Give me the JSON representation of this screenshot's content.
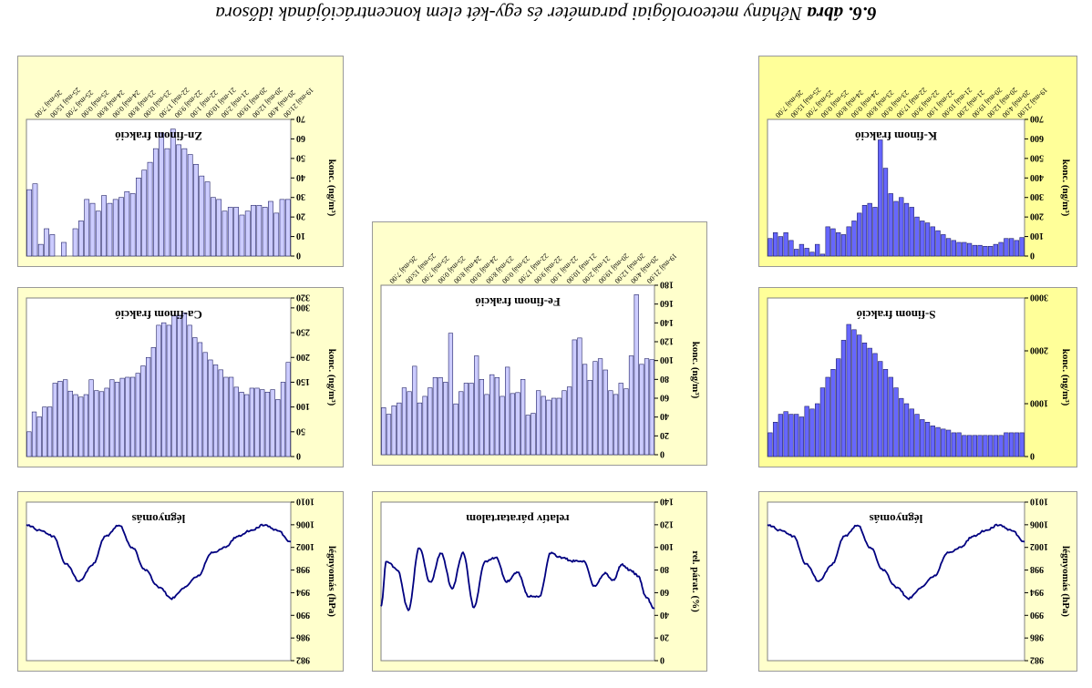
{
  "figure": {
    "number": "6.6. ábra",
    "caption": "Néhány meteorológiai paraméter és egy-két elem koncentrációjának idősora"
  },
  "colors": {
    "lavender_bg": "#ffffcc",
    "yellow_bg": "#ffff99",
    "light_bars": "#ccccff",
    "blue_bars": "#6666ff",
    "line": "#000080"
  },
  "date_labels": [
    "19-máj 21:00",
    "20-máj 4:00",
    "20-máj 12:00",
    "20-máj 19:00",
    "21-máj 2:00",
    "21-máj 10:00",
    "22-máj 1:00",
    "22-máj 9:00",
    "22-máj 17:00",
    "23-máj 0:00",
    "23-máj 8:00",
    "24-máj 0:00",
    "24-máj 8:00",
    "25-máj 0:00",
    "25-máj 7:00",
    "25-máj 15:00",
    "26-máj 7:00"
  ],
  "chart_data": [
    {
      "id": "zn",
      "type": "bar",
      "title": "Zn-finom frakció",
      "ylabel": "konc. (ng/m³)",
      "y_axis": "inverted",
      "ylim": [
        0,
        70
      ],
      "yticks": [
        0,
        10,
        20,
        30,
        40,
        50,
        60,
        70
      ],
      "values": [
        29,
        29,
        22,
        28,
        25,
        26,
        26,
        23,
        21,
        25,
        25,
        23,
        29,
        30,
        38,
        41,
        47,
        52,
        55,
        57,
        65,
        55,
        63,
        55,
        48,
        44,
        40,
        32,
        33,
        30,
        29,
        27,
        31,
        23,
        27,
        29,
        18,
        14,
        0,
        7,
        0,
        11,
        14,
        6,
        37,
        34
      ]
    },
    {
      "id": "k",
      "type": "bar",
      "title": "K-finom frakció",
      "ylabel": "konc. (ng/m³)",
      "y_axis": "inverted",
      "ylim": [
        0,
        700
      ],
      "yticks": [
        0,
        100,
        200,
        300,
        400,
        500,
        600,
        700
      ],
      "values": [
        95,
        80,
        90,
        90,
        70,
        60,
        50,
        50,
        55,
        55,
        65,
        70,
        70,
        80,
        90,
        110,
        130,
        150,
        170,
        180,
        200,
        250,
        270,
        300,
        280,
        320,
        450,
        595,
        250,
        270,
        260,
        220,
        180,
        150,
        110,
        120,
        140,
        150,
        10,
        60,
        20,
        40,
        60,
        35,
        80,
        120,
        100,
        120,
        90
      ]
    },
    {
      "id": "fe",
      "type": "bar",
      "title": "Fe-finom frakció",
      "ylabel": "konc. (ng/m³)",
      "y_axis": "inverted",
      "ylim": [
        0,
        180
      ],
      "yticks": [
        0,
        20,
        40,
        60,
        80,
        100,
        120,
        140,
        160,
        180
      ],
      "values": [
        101,
        102,
        96,
        170,
        105,
        70,
        76,
        64,
        68,
        90,
        102,
        99,
        79,
        96,
        124,
        122,
        72,
        68,
        60,
        60,
        58,
        62,
        68,
        44,
        42,
        80,
        66,
        65,
        93,
        62,
        82,
        85,
        64,
        80,
        105,
        76,
        76,
        67,
        54,
        129,
        77,
        82,
        82,
        71,
        62,
        55,
        94,
        67,
        71,
        55,
        52,
        43,
        50
      ]
    },
    {
      "id": "s",
      "type": "bar",
      "title": "S-finom frakció",
      "ylabel": "konc. (ng/m³)",
      "y_axis": "inverted",
      "ylim": [
        0,
        3000
      ],
      "yticks": [
        0,
        1000,
        2000,
        3000
      ],
      "values": [
        450,
        450,
        450,
        450,
        400,
        400,
        400,
        400,
        400,
        400,
        400,
        400,
        450,
        450,
        500,
        520,
        550,
        580,
        650,
        700,
        800,
        900,
        1000,
        1100,
        1300,
        1500,
        1650,
        1800,
        1950,
        2050,
        2150,
        2300,
        2400,
        2500,
        2200,
        1850,
        1650,
        1500,
        1300,
        1000,
        900,
        950,
        750,
        800,
        800,
        850,
        800,
        650,
        450
      ]
    },
    {
      "id": "ca",
      "type": "bar",
      "title": "Ca-finom frakció",
      "ylabel": "konc. (ng/m³)",
      "y_axis": "inverted",
      "ylim": [
        0,
        320
      ],
      "yticks": [
        0,
        50,
        100,
        150,
        200,
        250,
        300,
        320
      ],
      "values": [
        190,
        150,
        115,
        135,
        130,
        135,
        138,
        138,
        125,
        130,
        140,
        160,
        160,
        175,
        185,
        195,
        210,
        230,
        240,
        265,
        290,
        285,
        285,
        265,
        270,
        265,
        220,
        200,
        183,
        168,
        160,
        160,
        158,
        150,
        155,
        138,
        131,
        133,
        155,
        125,
        120,
        125,
        132,
        155,
        152,
        148,
        100,
        100,
        80,
        90,
        50
      ]
    },
    {
      "id": "rh",
      "type": "line",
      "title": "relatív páratartalom",
      "ylabel": "rel. párat. (%)",
      "y_axis": "inverted",
      "ylim": [
        0,
        140
      ],
      "yticks": [
        0,
        20,
        40,
        60,
        80,
        100,
        120,
        140
      ],
      "x_index": [
        0,
        3,
        6,
        9,
        12,
        15,
        18,
        22,
        26,
        30,
        34,
        38,
        42,
        46,
        50,
        54,
        58,
        62,
        66,
        70,
        74,
        78,
        82,
        86,
        90,
        94,
        98,
        100
      ],
      "values": [
        46,
        56,
        75,
        80,
        85,
        71,
        77,
        66,
        88,
        88,
        91,
        95,
        57,
        57,
        78,
        70,
        91,
        87,
        47,
        95,
        64,
        95,
        69,
        100,
        45,
        80,
        88,
        48
      ]
    },
    {
      "id": "p1",
      "type": "line",
      "title": "légnyomás",
      "ylabel": "légnyomás (hPa)",
      "y_axis": "inverted",
      "ylim": [
        982,
        1010
      ],
      "yticks": [
        982,
        986,
        990,
        994,
        998,
        1002,
        1006,
        1010
      ],
      "x_index": [
        0,
        5,
        10,
        15,
        20,
        25,
        30,
        35,
        40,
        45,
        50,
        55,
        60,
        65,
        70,
        75,
        80,
        85,
        90,
        95,
        100
      ],
      "values": [
        1003,
        1005,
        1006,
        1005,
        1004,
        1002,
        1001,
        997,
        995,
        993,
        995,
        998,
        1002,
        1006,
        1004,
        999,
        996,
        999,
        1004,
        1005,
        1006
      ]
    },
    {
      "id": "p2",
      "type": "line",
      "title": "légnyomás",
      "ylabel": "légnyomás (hPa)",
      "y_axis": "inverted",
      "ylim": [
        982,
        1010
      ],
      "yticks": [
        982,
        986,
        990,
        994,
        998,
        1002,
        1006,
        1010
      ],
      "x_index": [
        0,
        5,
        10,
        15,
        20,
        25,
        30,
        35,
        40,
        45,
        50,
        55,
        60,
        65,
        70,
        75,
        80,
        85,
        90,
        95,
        100
      ],
      "values": [
        1003,
        1005,
        1006,
        1005,
        1004,
        1002,
        1001,
        997,
        995,
        993,
        995,
        998,
        1002,
        1006,
        1004,
        999,
        996,
        999,
        1004,
        1005,
        1006
      ]
    }
  ]
}
